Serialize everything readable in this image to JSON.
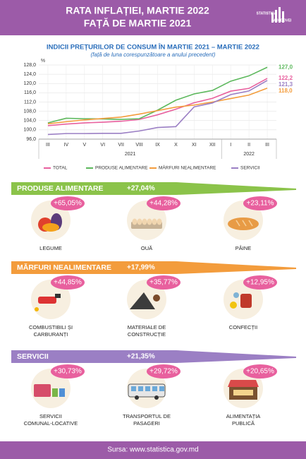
{
  "header": {
    "title_lines": [
      "RATA INFLAȚIEI, MARTIE 2022",
      "FAȚĂ DE MARTIE 2021"
    ],
    "logo_lines": [
      "STATISTICA",
      "MOLDOVEI"
    ]
  },
  "chart_data": {
    "type": "line",
    "title": "INDICII PREȚURILOR DE CONSUM ÎN MARTIE 2021 – MARTIE 2022",
    "subtitle": "(față de luna corespunzătoare a anului precedent)",
    "y_unit": "%",
    "categories": [
      "III",
      "IV",
      "V",
      "VI",
      "VII",
      "VIII",
      "IX",
      "X",
      "XI",
      "XII",
      "I",
      "II",
      "III"
    ],
    "x_groups": [
      {
        "label": "2021",
        "size": 10
      },
      {
        "label": "2022",
        "size": 3
      }
    ],
    "ylim": [
      96,
      128
    ],
    "yticks": [
      {
        "value": 96,
        "label": "96,0"
      },
      {
        "value": 100,
        "label": "100,0"
      },
      {
        "value": 104,
        "label": "104,0"
      },
      {
        "value": 108,
        "label": "108,0"
      },
      {
        "value": 112,
        "label": "112,0"
      },
      {
        "value": 116,
        "label": "116,0"
      },
      {
        "value": 120,
        "label": "120,0"
      },
      {
        "value": 124,
        "label": "124,0"
      },
      {
        "value": 128,
        "label": "128,0"
      }
    ],
    "grid": true,
    "series": [
      {
        "name": "TOTAL",
        "color": "#e8609e",
        "values": [
          101.8,
          102.5,
          103.0,
          103.3,
          103.7,
          104.5,
          106.5,
          108.9,
          111.7,
          113.6,
          116.7,
          117.9,
          122.2
        ],
        "value_labels": [
          null,
          null,
          null,
          null,
          null,
          null,
          null,
          null,
          null,
          null,
          null,
          null,
          "122,2"
        ]
      },
      {
        "name": "PRODUSE ALIMENTARE",
        "color": "#5cb85c",
        "values": [
          103.0,
          105.0,
          104.8,
          104.7,
          104.5,
          104.8,
          108.5,
          112.8,
          115.5,
          117.0,
          121.0,
          123.3,
          127.0
        ],
        "value_labels": [
          null,
          null,
          null,
          null,
          null,
          null,
          null,
          null,
          null,
          null,
          null,
          null,
          "127,0"
        ]
      },
      {
        "name": "MĂRFURI NEALIMENTARE",
        "color": "#f39c3c",
        "values": [
          102.6,
          103.5,
          104.3,
          104.9,
          105.5,
          106.8,
          108.3,
          109.8,
          110.7,
          112.0,
          113.5,
          115.0,
          118.0
        ],
        "value_labels": [
          null,
          null,
          null,
          null,
          null,
          null,
          null,
          null,
          null,
          null,
          null,
          null,
          "118,0"
        ]
      },
      {
        "name": "SERVICII",
        "color": "#9b7fc4",
        "values": [
          98.0,
          98.4,
          98.4,
          98.5,
          98.5,
          99.5,
          101.0,
          101.4,
          109.9,
          111.6,
          115.2,
          116.8,
          121.3
        ],
        "value_labels": [
          null,
          null,
          null,
          null,
          null,
          null,
          null,
          null,
          null,
          null,
          null,
          null,
          "121,3"
        ]
      }
    ]
  },
  "sections": [
    {
      "title": "PRODUSE ALIMENTARE",
      "total": "+27,04%",
      "color": "#8bc34a",
      "items": [
        {
          "label": [
            "LEGUME"
          ],
          "change": "+65,05%"
        },
        {
          "label": [
            "OUĂ"
          ],
          "change": "+44,28%"
        },
        {
          "label": [
            "PÂINE"
          ],
          "change": "+23,11%"
        }
      ]
    },
    {
      "title": "MĂRFURI NEALIMENTARE",
      "total": "+17,99%",
      "color": "#f39c3c",
      "items": [
        {
          "label": [
            "COMBUSTIBILI ȘI",
            "CARBURANȚI"
          ],
          "change": "+44,85%"
        },
        {
          "label": [
            "MATERIALE DE",
            "CONSTRUCȚIE"
          ],
          "change": "+35,77%"
        },
        {
          "label": [
            "CONFECȚII"
          ],
          "change": "+12,95%"
        }
      ]
    },
    {
      "title": "SERVICII",
      "total": "+21,35%",
      "color": "#9b7fc4",
      "items": [
        {
          "label": [
            "SERVICII",
            "COMUNAL-LOCATIVE"
          ],
          "change": "+30,73%"
        },
        {
          "label": [
            "TRANSPORTUL DE",
            "PASAGERI"
          ],
          "change": "+29,72%"
        },
        {
          "label": [
            "ALIMENTAȚIA",
            "PUBLICĂ"
          ],
          "change": "+20,65%"
        }
      ]
    }
  ],
  "footer": {
    "source": "Sursa: www.statistica.gov.md"
  }
}
